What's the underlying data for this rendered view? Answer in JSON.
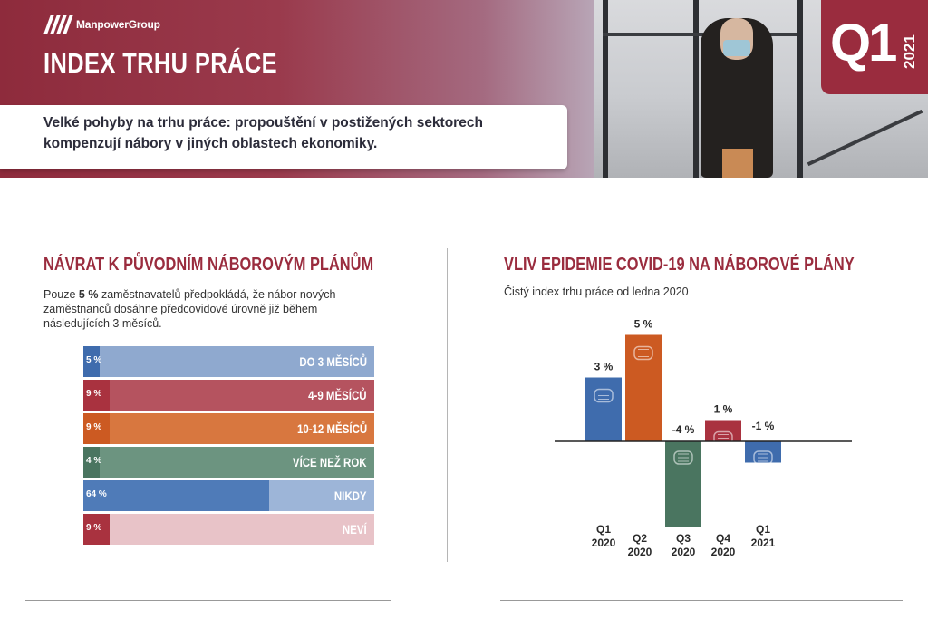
{
  "header": {
    "brand": "ManpowerGroup",
    "title": "INDEX TRHU PRÁCE",
    "subtitle_line1": "Velké pohyby na trhu práce: propouštění v postižených sektorech",
    "subtitle_line2": "kompenzují nábory v jiných oblastech ekonomiky.",
    "quarter": "Q1",
    "year": "2021"
  },
  "left": {
    "title": "NÁVRAT K PŮVODNÍM NÁBOROVÝM PLÁNŮM",
    "desc_prefix": "Pouze ",
    "desc_bold": "5 %",
    "desc_suffix": " zaměstnavatelů předpokládá, že nábor nových zaměstnanců dosáhne předcovidové úrovně již během následujících 3 měsíců."
  },
  "right": {
    "title": "VLIV EPIDEMIE COVID-19 NA NÁBOROVÉ PLÁNY",
    "subtitle": "Čistý index trhu práce od ledna 2020"
  },
  "colors": {
    "brand": "#9a2c3e",
    "blue": "#3f6cad",
    "red": "#a9323f",
    "orange": "#cc5a22",
    "green": "#4a7560"
  },
  "chart_data": [
    {
      "type": "bar",
      "orientation": "horizontal",
      "categories": [
        "DO 3 MĚSÍCŮ",
        "4-9 MĚSÍCŮ",
        "10-12 MĚSÍCŮ",
        "VÍCE NEŽ ROK",
        "NIKDY",
        "NEVÍ"
      ],
      "values": [
        5,
        9,
        9,
        4,
        64,
        9
      ],
      "labels": [
        "5 %",
        "9 %",
        "9 %",
        "4 %",
        "64 %",
        "9 %"
      ],
      "colors": [
        "#3f6cad",
        "#a9323f",
        "#cc5a22",
        "#4a7560",
        "#4f7bb8",
        "#a9323f"
      ],
      "bg_colors": [
        "#8fa9cf",
        "#b5535f",
        "#d8773f",
        "#6c9480",
        "#9db5d8",
        "#e8c3c8"
      ],
      "xlim": [
        0,
        100
      ]
    },
    {
      "type": "bar",
      "categories": [
        [
          "Q1",
          "2020"
        ],
        [
          "Q2",
          "2020"
        ],
        [
          "Q3",
          "2020"
        ],
        [
          "Q4",
          "2020"
        ],
        [
          "Q1",
          "2021"
        ]
      ],
      "values": [
        3,
        5,
        -4,
        1,
        -1
      ],
      "labels": [
        "3 %",
        "5 %",
        "-4 %",
        "1 %",
        "-1 %"
      ],
      "colors": [
        "#3f6cad",
        "#cc5a22",
        "#4a7560",
        "#a9323f",
        "#3f6cad"
      ],
      "ylim": [
        -4,
        5
      ],
      "icon": "face-mask-icon"
    }
  ]
}
